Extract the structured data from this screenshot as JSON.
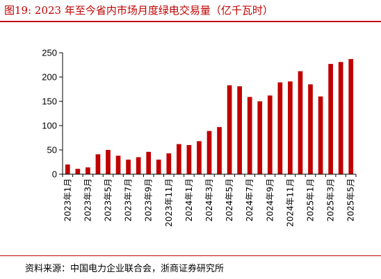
{
  "figure": {
    "title": "图19:  2023 年至今省内市场月度绿电交易量（亿千瓦时）",
    "source": "资料来源：中国电力企业联合会，浙商证券研究所"
  },
  "chart_data": {
    "type": "bar",
    "title": "",
    "xlabel": "",
    "ylabel": "",
    "ylim": [
      0,
      250
    ],
    "yticks": [
      0,
      50,
      100,
      150,
      200,
      250
    ],
    "grid": false,
    "legend": "none",
    "bar_color": "#c00000",
    "categories": [
      "2023年1月",
      "2023年2月",
      "2023年3月",
      "2023年4月",
      "2023年5月",
      "2023年6月",
      "2023年7月",
      "2023年8月",
      "2023年9月",
      "2023年10月",
      "2023年11月",
      "2023年12月",
      "2024年1月",
      "2024年2月",
      "2024年3月",
      "2024年4月",
      "2024年5月",
      "2024年6月",
      "2024年7月",
      "2024年8月",
      "2024年9月",
      "2024年10月",
      "2024年11月",
      "2024年12月",
      "2025年1月",
      "2025年2月",
      "2025年3月",
      "2025年4月",
      "2025年5月"
    ],
    "shown_labels": [
      "2023年1月",
      "2023年3月",
      "2023年5月",
      "2023年7月",
      "2023年9月",
      "2023年11月",
      "2024年1月",
      "2024年3月",
      "2024年5月",
      "2024年7月",
      "2024年9月",
      "2024年11月",
      "2025年1月",
      "2025年3月",
      "2025年5月"
    ],
    "values": [
      20,
      11,
      14,
      41,
      50,
      38,
      30,
      35,
      46,
      30,
      43,
      62,
      60,
      68,
      89,
      97,
      183,
      181,
      159,
      150,
      162,
      189,
      191,
      212,
      185,
      160,
      227,
      231,
      237
    ]
  }
}
